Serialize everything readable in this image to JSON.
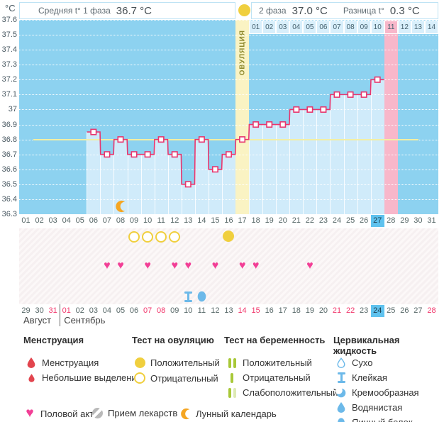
{
  "unit_label": "°C",
  "header": {
    "phase1_label": "Средняя t° 1 фаза",
    "phase1_value": "36.7 °C",
    "phase2_label": "2 фаза",
    "phase2_value": "37.0 °C",
    "diff_label": "Разница t°",
    "diff_value": "0.3 °C"
  },
  "ovulation_band_label": "ОВУЛЯЦИЯ",
  "chart_data": {
    "type": "line",
    "ylabel": "°C",
    "ylim": [
      36.3,
      37.6
    ],
    "ytick_step": 0.1,
    "yticks": [
      "37.6",
      "37.5",
      "37.4",
      "37.3",
      "37.2",
      "37.1",
      "37",
      "36.9",
      "36.8",
      "36.7",
      "36.6",
      "36.5",
      "36.4",
      "36.3"
    ],
    "x_days": [
      "01",
      "02",
      "03",
      "04",
      "05",
      "06",
      "07",
      "08",
      "09",
      "10",
      "11",
      "12",
      "13",
      "14",
      "15",
      "16",
      "17",
      "18",
      "19",
      "20",
      "21",
      "22",
      "23",
      "24",
      "25",
      "26",
      "27",
      "28",
      "29",
      "30",
      "31"
    ],
    "series": [
      {
        "name": "Базальная температура",
        "points": [
          [
            6,
            36.85
          ],
          [
            7,
            36.7
          ],
          [
            8,
            36.8
          ],
          [
            9,
            36.7
          ],
          [
            10,
            36.7
          ],
          [
            11,
            36.8
          ],
          [
            12,
            36.7
          ],
          [
            13,
            36.5
          ],
          [
            14,
            36.8
          ],
          [
            15,
            36.6
          ],
          [
            16,
            36.7
          ],
          [
            17,
            36.8
          ],
          [
            18,
            36.9
          ],
          [
            19,
            36.9
          ],
          [
            20,
            36.9
          ],
          [
            21,
            37.0
          ],
          [
            22,
            37.0
          ],
          [
            23,
            37.0
          ],
          [
            24,
            37.1
          ],
          [
            25,
            37.1
          ],
          [
            26,
            37.1
          ],
          [
            27,
            37.2
          ]
        ]
      }
    ],
    "coverline_value": 36.8,
    "ovulation_day": 17,
    "period_forecast_day": 28,
    "current_cycle_day": "27",
    "moon_day": 8,
    "phase2_row": {
      "start_cycle_day": 18,
      "labels": [
        "01",
        "02",
        "03",
        "04",
        "05",
        "06",
        "07",
        "08",
        "09",
        "10",
        "11",
        "12",
        "13",
        "14"
      ],
      "highlighted": "11"
    },
    "grid": "dotted-horizontal",
    "legend_position": "bottom"
  },
  "markers": {
    "ovulation_test_negative_days": [
      9,
      10,
      11,
      12
    ],
    "ovulation_test_positive_days": [
      16
    ],
    "intercourse_days": [
      7,
      8,
      10,
      12,
      13,
      15,
      17,
      18,
      22
    ],
    "cervical_fluid": [
      {
        "day": 13,
        "type": "Клейкая",
        "icon": "ibeam"
      },
      {
        "day": 14,
        "type": "Яичный белок",
        "icon": "egg"
      }
    ]
  },
  "calendar": {
    "dates": [
      "29",
      "30",
      "31",
      "01",
      "02",
      "03",
      "04",
      "05",
      "06",
      "07",
      "08",
      "09",
      "10",
      "11",
      "12",
      "13",
      "14",
      "15",
      "16",
      "17",
      "18",
      "19",
      "20",
      "21",
      "22",
      "23",
      "24",
      "25",
      "26",
      "27",
      "28"
    ],
    "red_indices": [
      2,
      3,
      9,
      10,
      16,
      17,
      23,
      24,
      30
    ],
    "highlight_index": 26,
    "months": [
      {
        "name": "Август",
        "start_index": 0
      },
      {
        "name": "Сентябрь",
        "start_index": 3
      }
    ]
  },
  "legend": {
    "sections": [
      {
        "title": "Менструация",
        "items": [
          {
            "icon": "drop-large",
            "label": "Менструация"
          },
          {
            "icon": "drop-small",
            "label": "Небольшие выделения"
          }
        ]
      },
      {
        "title": "Тест на овуляцию",
        "items": [
          {
            "icon": "circle-filled",
            "label": "Положительный"
          },
          {
            "icon": "circle-outline",
            "label": "Отрицательный"
          }
        ]
      },
      {
        "title": "Тест на беременность",
        "items": [
          {
            "icon": "bars-2",
            "label": "Положительный"
          },
          {
            "icon": "bar-1",
            "label": "Отрицательный"
          },
          {
            "icon": "bars-weak",
            "label": "Слабоположительный"
          }
        ]
      },
      {
        "title": "Цервикальная жидкость",
        "items": [
          {
            "icon": "droplet-outline",
            "label": "Сухо"
          },
          {
            "icon": "ibeam",
            "label": "Клейкая"
          },
          {
            "icon": "crescent-blue",
            "label": "Кремообразная"
          },
          {
            "icon": "droplet-filled",
            "label": "Водянистая"
          },
          {
            "icon": "egg",
            "label": "Яичный белок"
          }
        ]
      }
    ],
    "bottom_items": [
      {
        "icon": "heart",
        "label": "Половой акт"
      },
      {
        "icon": "pill",
        "label": "Прием лекарств"
      },
      {
        "icon": "moon",
        "label": "Лунный календарь"
      }
    ]
  },
  "glyphs": {
    "heart": "♥"
  },
  "colors": {
    "chart_bg": "#8dd2f0",
    "bar": "#d0ebfa",
    "phase2_cell": "#d8effb",
    "ovulation_band": "#faf3c3",
    "ovulation_text": "#8f8a2e",
    "period_band": "#f8b7ca",
    "curve": "#e8356d",
    "coverline": "#f3efa3",
    "positive_test": "#f0cf3e",
    "heart": "#f23f96",
    "moon": "#f5a623",
    "cervical": "#6cb9e9",
    "menstruation": "#e2454e",
    "pregnancy_test": "#a8c838",
    "pregnancy_test_weak": "#dde9b4",
    "date_red": "#f1356a",
    "today_highlight": "#5fc2ee",
    "pill": "#b9b9b9"
  }
}
